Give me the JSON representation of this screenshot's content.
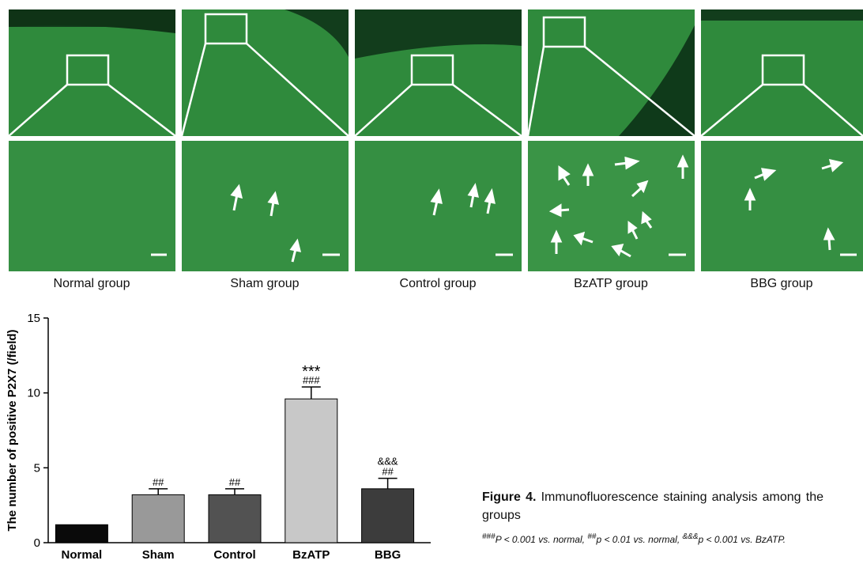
{
  "figure": {
    "groups": [
      {
        "label": "Normal group"
      },
      {
        "label": "Sham group"
      },
      {
        "label": "Control group"
      },
      {
        "label": "BzATP group"
      },
      {
        "label": "BBG group"
      }
    ],
    "caption_label": "Figure 4.",
    "caption_text": " Immunofluorescence staining analysis among the groups",
    "footnote": [
      {
        "sup": "###",
        "text": "P < 0.001 vs. normal, "
      },
      {
        "sup": "##",
        "text": "p < 0.01 vs. normal, "
      },
      {
        "sup": "&&&",
        "text": "p < 0.001 vs. BzATP."
      }
    ]
  },
  "chart_data": {
    "type": "bar",
    "categories": [
      "Normal",
      "Sham",
      "Control",
      "BzATP",
      "BBG"
    ],
    "values": [
      1.2,
      3.2,
      3.2,
      9.6,
      3.6
    ],
    "errors": [
      0,
      0.4,
      0.4,
      0.8,
      0.7
    ],
    "annotations": [
      "",
      "##",
      "##",
      "***\n###",
      "&&&\n##"
    ],
    "bar_colors": [
      "#0a0a0a",
      "#999999",
      "#525252",
      "#c8c8c8",
      "#3c3c3c"
    ],
    "ylabel": "The number of positive P2X7 (/field)",
    "ylim": [
      0,
      15
    ],
    "yticks": [
      0,
      5,
      10,
      15
    ],
    "grid": false
  }
}
